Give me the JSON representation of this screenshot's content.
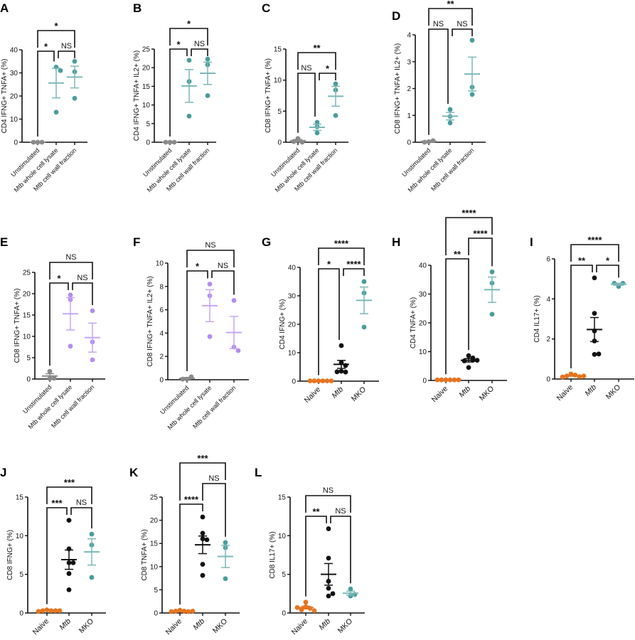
{
  "colors": {
    "teal": "#4a9c9c",
    "teal_bar": "#7bb8b8",
    "grey": "#8a8a8a",
    "purple": "#b48cf2",
    "purple_bar": "#c5a6f5",
    "orange": "#e5741f",
    "black": "#111111"
  },
  "chart_data": [
    {
      "panel": "A",
      "type": "scatter",
      "ylabel": "CD4 IFNG+ TNFA+ (%)",
      "ylim": [
        0,
        40
      ],
      "yticks": [
        0,
        10,
        20,
        30,
        40
      ],
      "categories": [
        "Unstimulated",
        "Mtb whole cell lysate",
        "Mtb cell wall fraction"
      ],
      "groups": [
        {
          "color": "grey",
          "points": [
            0,
            0,
            0
          ],
          "mean": 0,
          "sem": 0
        },
        {
          "color": "teal",
          "points": [
            32.5,
            13,
            31
          ],
          "mean": 25.6,
          "sem": 6.4
        },
        {
          "color": "teal",
          "points": [
            35,
            30.5,
            19
          ],
          "mean": 28.2,
          "sem": 4.7
        }
      ],
      "brackets": [
        {
          "from": 0,
          "to": 1,
          "label": "*",
          "level": 1
        },
        {
          "from": 1,
          "to": 2,
          "label": "NS",
          "level": 1
        },
        {
          "from": 0,
          "to": 2,
          "label": "*",
          "level": 2
        }
      ]
    },
    {
      "panel": "B",
      "type": "scatter",
      "ylabel": "CD4 IFNG+ TNFA+ IL2+ (%)",
      "ylim": [
        0,
        25
      ],
      "yticks": [
        0,
        5,
        10,
        15,
        20,
        25
      ],
      "categories": [
        "Unstimulated",
        "Mtb whole cell lysate",
        "Mtb cell wall fraction"
      ],
      "groups": [
        {
          "color": "grey",
          "points": [
            0,
            0,
            0
          ],
          "mean": 0,
          "sem": 0
        },
        {
          "color": "teal",
          "points": [
            22,
            16.3,
            7
          ],
          "mean": 15.1,
          "sem": 4.4
        },
        {
          "color": "teal",
          "points": [
            22.3,
            20.8,
            12.5
          ],
          "mean": 18.5,
          "sem": 3.0
        }
      ],
      "brackets": [
        {
          "from": 0,
          "to": 1,
          "label": "*",
          "level": 1
        },
        {
          "from": 1,
          "to": 2,
          "label": "NS",
          "level": 1
        },
        {
          "from": 0,
          "to": 2,
          "label": "*",
          "level": 2
        }
      ]
    },
    {
      "panel": "C",
      "type": "scatter",
      "ylabel": "CD8 IFNG+ TNFA+ (%)",
      "ylim": [
        0,
        15
      ],
      "yticks": [
        0,
        5,
        10,
        15
      ],
      "categories": [
        "Unstimulated",
        "Mtb whole cell lysate",
        "Mtb cell wall fraction"
      ],
      "groups": [
        {
          "color": "grey",
          "points": [
            0.6,
            0,
            0.1
          ],
          "mean": 0.25,
          "sem": 0.2
        },
        {
          "color": "teal",
          "points": [
            3.2,
            1.5,
            2.5
          ],
          "mean": 2.4,
          "sem": 0.5
        },
        {
          "color": "teal",
          "points": [
            9.4,
            8.4,
            4.3
          ],
          "mean": 7.4,
          "sem": 1.6
        }
      ],
      "brackets": [
        {
          "from": 0,
          "to": 1,
          "label": "NS",
          "level": 1
        },
        {
          "from": 1,
          "to": 2,
          "label": "*",
          "level": 1
        },
        {
          "from": 0,
          "to": 2,
          "label": "**",
          "level": 2
        }
      ]
    },
    {
      "panel": "D",
      "type": "scatter",
      "ylabel": "CD8 IFNG+ TNFA+ IL2+ (%)",
      "ylim": [
        0,
        4
      ],
      "yticks": [
        0,
        1,
        2,
        3,
        4
      ],
      "categories": [
        "Unstimulated",
        "Mtb whole cell lysate",
        "Mtb cell wall fraction"
      ],
      "groups": [
        {
          "color": "grey",
          "points": [
            0.02,
            0.06,
            0
          ],
          "mean": 0.03,
          "sem": 0.02
        },
        {
          "color": "teal",
          "points": [
            1.22,
            0.96,
            0.72
          ],
          "mean": 0.97,
          "sem": 0.14
        },
        {
          "color": "teal",
          "points": [
            3.8,
            2.05,
            1.78
          ],
          "mean": 2.54,
          "sem": 0.63
        }
      ],
      "brackets": [
        {
          "from": 0,
          "to": 1,
          "label": "NS",
          "level": 1
        },
        {
          "from": 1,
          "to": 2,
          "label": "NS",
          "level": 1
        },
        {
          "from": 0,
          "to": 2,
          "label": "**",
          "level": 2
        }
      ]
    },
    {
      "panel": "E",
      "type": "scatter",
      "ylabel": "CD8 IFNG+ TNFA+ (%)",
      "ylim": [
        0,
        25
      ],
      "yticks": [
        0,
        5,
        10,
        15,
        20,
        25
      ],
      "categories": [
        "Unstimulated",
        "Mtb whole cell lysate",
        "Mtb cell wall fraction"
      ],
      "groups": [
        {
          "color": "grey",
          "points": [
            1.8,
            0.1,
            0.2
          ],
          "mean": 0.7,
          "sem": 0.55
        },
        {
          "color": "purple",
          "points": [
            19.7,
            18.6,
            7.7
          ],
          "mean": 15.3,
          "sem": 3.8
        },
        {
          "color": "purple",
          "points": [
            16,
            8.7,
            4.5
          ],
          "mean": 9.7,
          "sem": 3.4
        }
      ],
      "brackets": [
        {
          "from": 0,
          "to": 1,
          "label": "*",
          "level": 1
        },
        {
          "from": 1,
          "to": 2,
          "label": "NS",
          "level": 1
        },
        {
          "from": 0,
          "to": 2,
          "label": "NS",
          "level": 2
        }
      ]
    },
    {
      "panel": "F",
      "type": "scatter",
      "ylabel": "CD8 IFNG+ TNFA+ IL2+ (%)",
      "ylim": [
        0,
        10
      ],
      "yticks": [
        0,
        2,
        4,
        6,
        8,
        10
      ],
      "categories": [
        "Unstimulated",
        "Mtb whole cell lysate",
        "Mtb cell wall fraction"
      ],
      "groups": [
        {
          "color": "grey",
          "points": [
            0.05,
            0.25,
            0.05
          ],
          "mean": 0.12,
          "sem": 0.07
        },
        {
          "color": "purple",
          "points": [
            8.2,
            7.2,
            3.7
          ],
          "mean": 6.35,
          "sem": 1.37
        },
        {
          "color": "purple",
          "points": [
            6.8,
            2.8,
            2.5
          ],
          "mean": 4.05,
          "sem": 1.38
        }
      ],
      "brackets": [
        {
          "from": 0,
          "to": 1,
          "label": "*",
          "level": 1
        },
        {
          "from": 1,
          "to": 2,
          "label": "NS",
          "level": 1
        },
        {
          "from": 0,
          "to": 2,
          "label": "NS",
          "level": 2
        }
      ]
    },
    {
      "panel": "G",
      "type": "scatter",
      "ylabel": "CD4 IFNG+ (%)",
      "ylim": [
        0,
        40
      ],
      "yticks": [
        0,
        10,
        20,
        30,
        40
      ],
      "categories": [
        "Naive",
        "Mtb",
        "MKO"
      ],
      "groups": [
        {
          "color": "orange",
          "points": [
            0.1,
            0.1,
            0.1,
            0.1,
            0.1,
            0.1
          ],
          "mean": 0.1,
          "sem": 0
        },
        {
          "color": "black",
          "points": [
            12.5,
            6.5,
            5.5,
            3.5,
            3.2,
            3.3
          ],
          "mean": 5.9,
          "sem": 1.4
        },
        {
          "color": "teal",
          "points": [
            35,
            31,
            19
          ],
          "mean": 28.4,
          "sem": 4.7
        }
      ],
      "brackets": [
        {
          "from": 0,
          "to": 1,
          "label": "*",
          "level": 1
        },
        {
          "from": 1,
          "to": 2,
          "label": "****",
          "level": 1
        },
        {
          "from": 0,
          "to": 2,
          "label": "****",
          "level": 2
        }
      ]
    },
    {
      "panel": "H",
      "type": "scatter",
      "ylabel": "CD4 TNFA+ (%)",
      "ylim": [
        0,
        40
      ],
      "yticks": [
        0,
        10,
        20,
        30,
        40
      ],
      "categories": [
        "Naive",
        "Mtb",
        "MKO"
      ],
      "groups": [
        {
          "color": "orange",
          "points": [
            0.2,
            0.2,
            0.2,
            0.2,
            0.2,
            0.2
          ],
          "mean": 0.2,
          "sem": 0
        },
        {
          "color": "black",
          "points": [
            8.6,
            7.8,
            7,
            6.8,
            7,
            4.5
          ],
          "mean": 7.0,
          "sem": 0.6
        },
        {
          "color": "teal",
          "points": [
            37.7,
            33.8,
            23
          ],
          "mean": 31.5,
          "sem": 4.4
        }
      ],
      "brackets": [
        {
          "from": 0,
          "to": 1,
          "label": "**",
          "level": 1
        },
        {
          "from": 1,
          "to": 2,
          "label": "****",
          "level": 2
        },
        {
          "from": 0,
          "to": 2,
          "label": "****",
          "level": 3
        }
      ]
    },
    {
      "panel": "I",
      "type": "scatter",
      "ylabel": "CD4 IL17+ (%)",
      "ylim": [
        0,
        6
      ],
      "yticks": [
        0,
        2,
        4,
        6
      ],
      "categories": [
        "Naive",
        "Mtb",
        "MKO"
      ],
      "groups": [
        {
          "color": "orange",
          "points": [
            0.25,
            0.2,
            0.15,
            0.12,
            0.1,
            0.15
          ],
          "mean": 0.16,
          "sem": 0.02
        },
        {
          "color": "black",
          "points": [
            5.05,
            3.28,
            2.4,
            1.9,
            1.23,
            1.25
          ],
          "mean": 2.47,
          "sem": 0.6
        },
        {
          "color": "teal",
          "points": [
            4.62,
            4.78,
            4.78
          ],
          "mean": 4.73,
          "sem": 0.05
        }
      ],
      "brackets": [
        {
          "from": 0,
          "to": 1,
          "label": "**",
          "level": 1
        },
        {
          "from": 1,
          "to": 2,
          "label": "*",
          "level": 1
        },
        {
          "from": 0,
          "to": 2,
          "label": "****",
          "level": 2
        }
      ]
    },
    {
      "panel": "J",
      "type": "scatter",
      "ylabel": "CD8 IFNG+ (%)",
      "ylim": [
        0,
        15
      ],
      "yticks": [
        0,
        5,
        10,
        15
      ],
      "categories": [
        "Naive",
        "Mtb",
        "MKO"
      ],
      "groups": [
        {
          "color": "orange",
          "points": [
            0.4,
            0.3,
            0.3,
            0.3,
            0.2,
            0.3
          ],
          "mean": 0.3,
          "sem": 0.03
        },
        {
          "color": "black",
          "points": [
            12,
            8.3,
            6.5,
            6.5,
            5.1,
            3
          ],
          "mean": 6.9,
          "sem": 1.25
        },
        {
          "color": "teal",
          "points": [
            10.2,
            8.8,
            4.6
          ],
          "mean": 7.9,
          "sem": 1.7
        }
      ],
      "brackets": [
        {
          "from": 0,
          "to": 1,
          "label": "***",
          "level": 1
        },
        {
          "from": 1,
          "to": 2,
          "label": "NS",
          "level": 1
        },
        {
          "from": 0,
          "to": 2,
          "label": "***",
          "level": 2
        }
      ]
    },
    {
      "panel": "K",
      "type": "scatter",
      "ylabel": "CD8 TNFA+ (%)",
      "ylim": [
        0,
        25
      ],
      "yticks": [
        0,
        5,
        10,
        15,
        20,
        25
      ],
      "categories": [
        "Naive",
        "Mtb",
        "MKO"
      ],
      "groups": [
        {
          "color": "orange",
          "points": [
            0.6,
            0.4,
            0.4,
            0.3,
            0.3,
            0.4
          ],
          "mean": 0.4,
          "sem": 0.05
        },
        {
          "color": "black",
          "points": [
            20.7,
            17.2,
            16,
            15.8,
            10.5,
            8.1
          ],
          "mean": 14.7,
          "sem": 1.9
        },
        {
          "color": "teal",
          "points": [
            15.2,
            14.1,
            7.4
          ],
          "mean": 12.2,
          "sem": 2.4
        }
      ],
      "brackets": [
        {
          "from": 0,
          "to": 1,
          "label": "****",
          "level": 1
        },
        {
          "from": 1,
          "to": 2,
          "label": "NS",
          "level": 2
        },
        {
          "from": 0,
          "to": 2,
          "label": "***",
          "level": 3
        }
      ]
    },
    {
      "panel": "L",
      "type": "scatter",
      "ylabel": "CD8 IL17+ (%)",
      "ylim": [
        0,
        15
      ],
      "yticks": [
        0,
        5,
        10,
        15
      ],
      "categories": [
        "Naive",
        "Mtb",
        "MKO"
      ],
      "groups": [
        {
          "color": "orange",
          "points": [
            1.4,
            0.8,
            0.6,
            0.4,
            0.3,
            0.7
          ],
          "mean": 0.7,
          "sem": 0.17
        },
        {
          "color": "black",
          "points": [
            10.9,
            7.1,
            4.1,
            3.2,
            2.2,
            2.5
          ],
          "mean": 5.0,
          "sem": 1.4
        },
        {
          "color": "teal",
          "points": [
            3.1,
            2.2,
            2.4
          ],
          "mean": 2.55,
          "sem": 0.27
        }
      ],
      "brackets": [
        {
          "from": 0,
          "to": 1,
          "label": "**",
          "level": 1
        },
        {
          "from": 1,
          "to": 2,
          "label": "NS",
          "level": 1
        },
        {
          "from": 0,
          "to": 2,
          "label": "NS",
          "level": 2
        }
      ]
    }
  ]
}
